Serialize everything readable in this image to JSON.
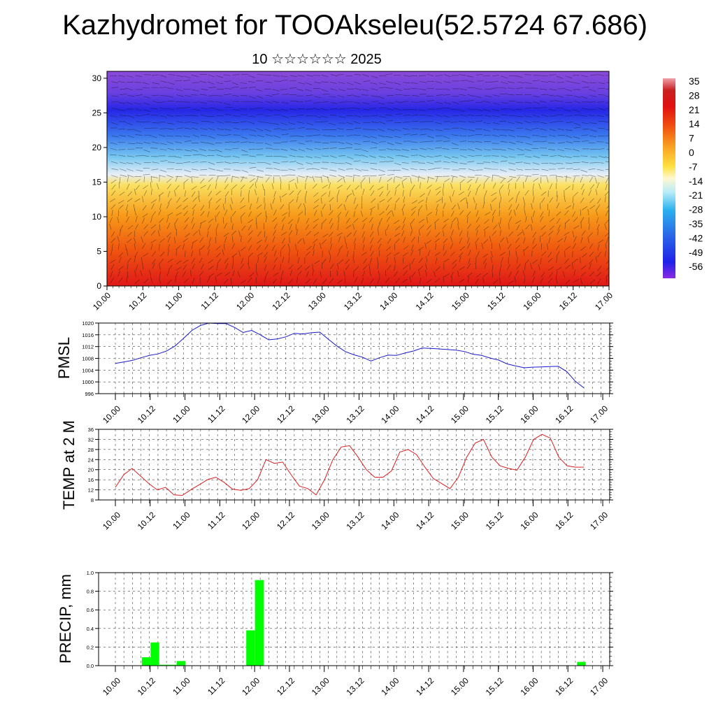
{
  "title": "Kazhydromet for TOOAkseleu(52.5724 67.686)",
  "subtitle": "10 ☆☆☆☆☆☆ 2025",
  "colors": {
    "pmsl_line": "#1a1acc",
    "temp_line": "#dd2020",
    "precip_bar": "#00ff00"
  },
  "chart_data": [
    {
      "type": "heatmap",
      "name": "cross-section",
      "x_tick_labels": [
        "10.00",
        "10.12",
        "11.00",
        "11.12",
        "12.00",
        "12.12",
        "13.00",
        "13.12",
        "14.00",
        "14.12",
        "15.00",
        "15.12",
        "16.00",
        "16.12",
        "17.00"
      ],
      "ylim": [
        0,
        31
      ],
      "y_ticks": [
        0,
        5,
        10,
        15,
        20,
        25,
        30
      ],
      "colorbar": {
        "labels": [
          "35",
          "28",
          "21",
          "14",
          "7",
          "0",
          "-7",
          "-14",
          "-21",
          "-28",
          "-35",
          "-42",
          "-49",
          "-56"
        ],
        "range": [
          -56,
          35
        ]
      }
    },
    {
      "type": "line",
      "name": "pmsl",
      "ylabel": "PMSL",
      "ylim": [
        996,
        1020
      ],
      "y_ticks": [
        996,
        1000,
        1004,
        1008,
        1012,
        1016,
        1020
      ],
      "x_tick_labels": [
        "10.00",
        "10.12",
        "11.00",
        "11.12",
        "12.00",
        "12.12",
        "13.00",
        "13.12",
        "14.00",
        "14.12",
        "15.00",
        "15.12",
        "16.00",
        "16.12",
        "17.00"
      ],
      "values": [
        1006.3,
        1006.8,
        1007.3,
        1008.2,
        1009.0,
        1009.5,
        1010.5,
        1012.2,
        1014.8,
        1017.5,
        1019.2,
        1020.0,
        1019.8,
        1019.8,
        1018.5,
        1016.8,
        1017.5,
        1016.0,
        1014.3,
        1014.6,
        1015.3,
        1016.5,
        1016.3,
        1016.7,
        1016.9,
        1014.5,
        1012.2,
        1010.3,
        1009.2,
        1008.4,
        1007.1,
        1008.2,
        1009.1,
        1009.0,
        1009.8,
        1010.5,
        1011.5,
        1011.4,
        1011.2,
        1011.0,
        1010.8,
        1010.3,
        1009.4,
        1009.0,
        1008.1,
        1007.4,
        1006.1,
        1005.4,
        1004.8,
        1005.0,
        1005.1,
        1005.2,
        1005.3,
        1003.5,
        1000.2,
        998.0
      ]
    },
    {
      "type": "line",
      "name": "temp",
      "ylabel": "TEMP at 2 M",
      "ylim": [
        8,
        36
      ],
      "y_ticks": [
        8,
        12,
        16,
        20,
        24,
        28,
        32,
        36
      ],
      "x_tick_labels": [
        "10.00",
        "10.12",
        "11.00",
        "11.12",
        "12.00",
        "12.12",
        "13.00",
        "13.12",
        "14.00",
        "14.12",
        "15.00",
        "15.12",
        "16.00",
        "16.12",
        "17.00"
      ],
      "values": [
        13.0,
        18.0,
        20.5,
        17.5,
        14.5,
        12.0,
        13.0,
        10.0,
        9.8,
        12.0,
        14.0,
        16.0,
        17.0,
        15.0,
        12.3,
        11.8,
        12.5,
        16.0,
        24.0,
        22.5,
        23.0,
        18.0,
        13.5,
        12.5,
        10.0,
        16.0,
        24.0,
        29.0,
        29.5,
        25.0,
        20.0,
        17.0,
        17.0,
        19.5,
        27.0,
        28.0,
        26.0,
        21.0,
        16.5,
        14.5,
        12.5,
        17.0,
        25.0,
        30.5,
        32.0,
        25.0,
        21.5,
        20.5,
        19.8,
        25.0,
        32.0,
        34.0,
        32.5,
        25.0,
        21.5,
        21.0,
        21.0
      ]
    },
    {
      "type": "bar",
      "name": "precip",
      "ylabel": "PRECIP, mm",
      "ylim": [
        0,
        1.0
      ],
      "y_ticks": [
        "0.0",
        "0.2",
        "0.4",
        "0.6",
        "0.8",
        "1.0"
      ],
      "x_tick_labels": [
        "10.00",
        "10.12",
        "11.00",
        "11.12",
        "12.00",
        "12.12",
        "13.00",
        "13.12",
        "14.00",
        "14.12",
        "15.00",
        "15.12",
        "16.00",
        "16.12",
        "17.00"
      ],
      "values": [
        0,
        0,
        0,
        0,
        0.09,
        0.25,
        0.01,
        0.01,
        0.05,
        0,
        0,
        0,
        0,
        0,
        0,
        0,
        0.38,
        0.92,
        0,
        0,
        0,
        0,
        0,
        0,
        0,
        0,
        0,
        0,
        0,
        0,
        0,
        0,
        0,
        0,
        0,
        0,
        0,
        0,
        0,
        0,
        0,
        0,
        0,
        0,
        0,
        0,
        0,
        0,
        0,
        0,
        0,
        0,
        0,
        0,
        0.04,
        0
      ]
    }
  ]
}
